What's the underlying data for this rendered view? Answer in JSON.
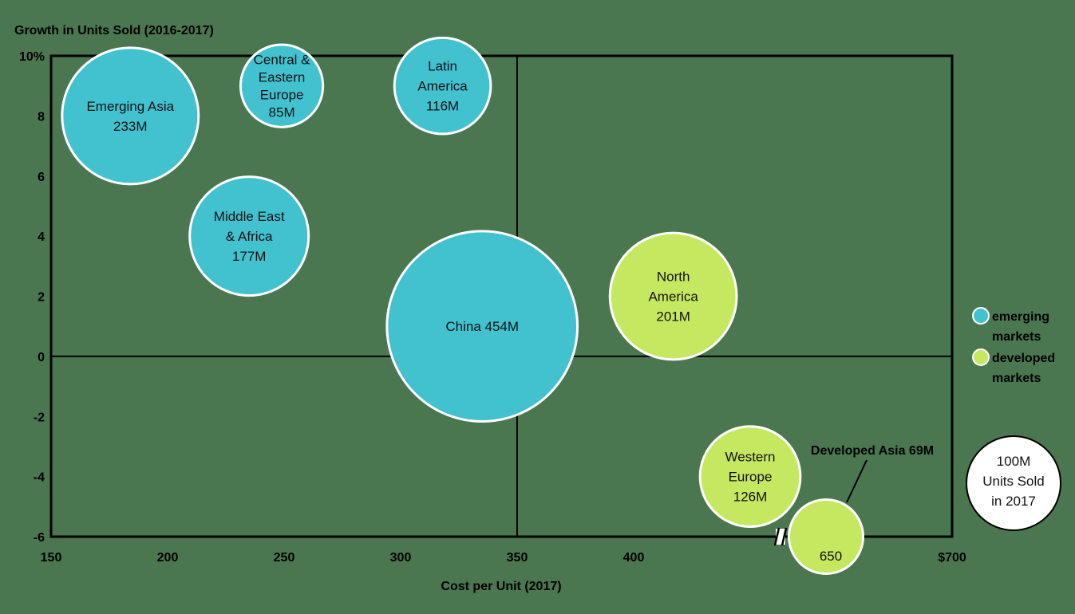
{
  "chart_data": {
    "type": "bubble",
    "ylabel": "Growth in Units Sold (2016-2017)",
    "xlabel": "Cost per Unit (2017)",
    "xlim": [
      150,
      700
    ],
    "ylim": [
      -6,
      10
    ],
    "x_ticks": [
      {
        "value": 150,
        "label": "150"
      },
      {
        "value": 200,
        "label": "200"
      },
      {
        "value": 250,
        "label": "250"
      },
      {
        "value": 300,
        "label": "300"
      },
      {
        "value": 350,
        "label": "350"
      },
      {
        "value": 400,
        "label": "400"
      },
      {
        "value": 700,
        "label": "$700"
      }
    ],
    "y_ticks": [
      {
        "value": 10,
        "label": "10%"
      },
      {
        "value": 8,
        "label": "8"
      },
      {
        "value": 6,
        "label": "6"
      },
      {
        "value": 4,
        "label": "4"
      },
      {
        "value": 2,
        "label": "2"
      },
      {
        "value": 0,
        "label": "0"
      },
      {
        "value": -2,
        "label": "-2"
      },
      {
        "value": -4,
        "label": "-4"
      },
      {
        "value": -6,
        "label": "-6"
      }
    ],
    "quadrant_dividers": {
      "x": 350,
      "y": 0
    },
    "axis_break": {
      "x": 460,
      "note": "x axis is broken between 400 and 650"
    },
    "colors": {
      "emerging": "#42c1cf",
      "developed": "#c6e861",
      "background": "#4a7650"
    },
    "series": [
      {
        "name": "emerging markets",
        "group": "emerging",
        "points": [
          {
            "lines": [
              "Emerging Asia",
              "233M"
            ],
            "x": 184,
            "y": 8,
            "units_m": 233
          },
          {
            "lines": [
              "Central &",
              "Eastern",
              "Europe",
              "85M"
            ],
            "x": 249,
            "y": 9,
            "units_m": 85
          },
          {
            "lines": [
              "Latin",
              "America",
              "116M"
            ],
            "x": 318,
            "y": 9,
            "units_m": 116
          },
          {
            "lines": [
              "Middle East",
              "& Africa",
              "177M"
            ],
            "x": 235,
            "y": 4,
            "units_m": 177
          },
          {
            "lines": [
              "China  454M"
            ],
            "x": 335,
            "y": 1,
            "units_m": 454
          }
        ]
      },
      {
        "name": "developed markets",
        "group": "developed",
        "points": [
          {
            "lines": [
              "North",
              "America",
              "201M"
            ],
            "x": 417,
            "y": 2,
            "units_m": 201
          },
          {
            "lines": [
              "Western",
              "Europe",
              "126M"
            ],
            "x": 450,
            "y": -4,
            "units_m": 126
          },
          {
            "lines": [
              "650"
            ],
            "x": 650,
            "y": -6,
            "units_m": 69,
            "callout": "Developed Asia  69M"
          }
        ]
      }
    ],
    "legend": {
      "placement": "right",
      "items": [
        {
          "lines": [
            "emerging",
            "markets"
          ],
          "group": "emerging"
        },
        {
          "lines": [
            "developed",
            "markets"
          ],
          "group": "developed"
        }
      ],
      "size_key": {
        "lines": [
          "100M",
          "Units Sold",
          "in 2017"
        ],
        "units_m": 100
      }
    }
  }
}
